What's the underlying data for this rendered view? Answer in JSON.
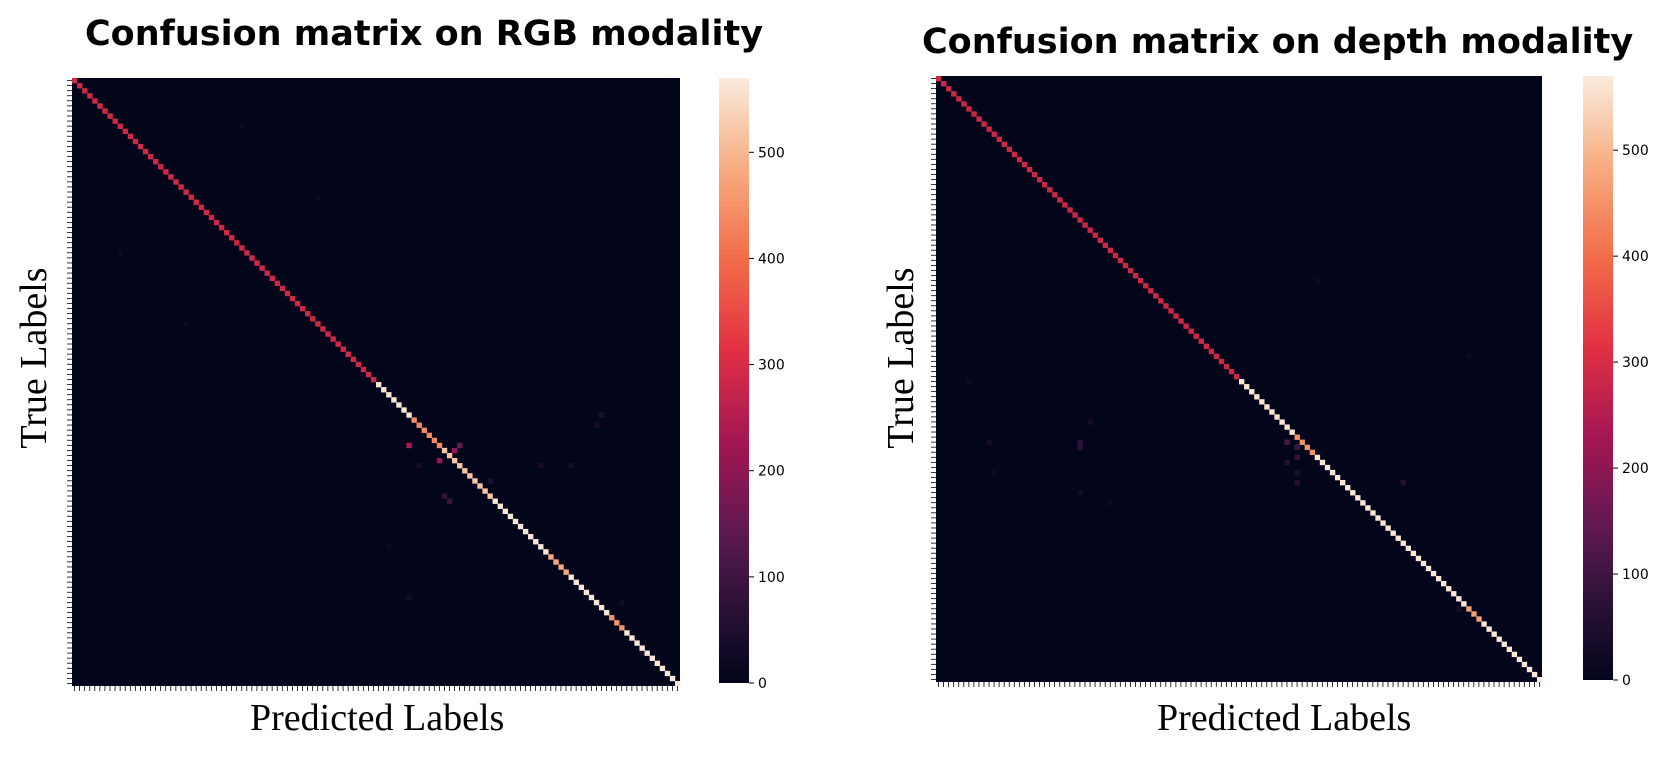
{
  "chart_data": [
    {
      "type": "heatmap",
      "title": "Confusion matrix on RGB modality",
      "xlabel": "Predicted Labels",
      "ylabel": "True Labels",
      "n_classes": 120,
      "colorbar": {
        "min": 0,
        "max": 570,
        "ticks": [
          0,
          100,
          200,
          300,
          400,
          500
        ]
      },
      "diagonal": [
        {
          "from_class": 0,
          "to_class": 59,
          "value": 290
        },
        {
          "from_class": 60,
          "to_class": 66,
          "value": 560
        },
        {
          "from_class": 67,
          "to_class": 72,
          "value": 440
        },
        {
          "from_class": 73,
          "to_class": 82,
          "value": 520
        },
        {
          "from_class": 83,
          "to_class": 93,
          "value": 565
        },
        {
          "from_class": 94,
          "to_class": 97,
          "value": 480
        },
        {
          "from_class": 98,
          "to_class": 105,
          "value": 565
        },
        {
          "from_class": 106,
          "to_class": 108,
          "value": 450
        },
        {
          "from_class": 109,
          "to_class": 119,
          "value": 565
        }
      ],
      "off_diagonal": [
        {
          "row": 72,
          "col": 66,
          "value": 240
        },
        {
          "row": 73,
          "col": 75,
          "value": 200
        },
        {
          "row": 75,
          "col": 72,
          "value": 220
        },
        {
          "row": 72,
          "col": 76,
          "value": 150
        },
        {
          "row": 83,
          "col": 74,
          "value": 90
        },
        {
          "row": 82,
          "col": 73,
          "value": 80
        },
        {
          "row": 79,
          "col": 82,
          "value": 60
        },
        {
          "row": 66,
          "col": 104,
          "value": 50
        },
        {
          "row": 68,
          "col": 103,
          "value": 40
        },
        {
          "row": 76,
          "col": 92,
          "value": 40
        },
        {
          "row": 76,
          "col": 98,
          "value": 40
        },
        {
          "row": 76,
          "col": 68,
          "value": 40
        },
        {
          "row": 102,
          "col": 66,
          "value": 35
        },
        {
          "row": 34,
          "col": 9,
          "value": 25
        },
        {
          "row": 9,
          "col": 33,
          "value": 20
        },
        {
          "row": 23,
          "col": 48,
          "value": 20
        },
        {
          "row": 48,
          "col": 22,
          "value": 20
        },
        {
          "row": 92,
          "col": 62,
          "value": 20
        },
        {
          "row": 103,
          "col": 108,
          "value": 30
        },
        {
          "row": 113,
          "col": 112,
          "value": 40
        }
      ]
    },
    {
      "type": "heatmap",
      "title": "Confusion matrix on depth modality",
      "xlabel": "Predicted Labels",
      "ylabel": "True Labels",
      "n_classes": 120,
      "colorbar": {
        "min": 0,
        "max": 570,
        "ticks": [
          0,
          100,
          200,
          300,
          400,
          500
        ]
      },
      "diagonal": [
        {
          "from_class": 0,
          "to_class": 59,
          "value": 285
        },
        {
          "from_class": 60,
          "to_class": 70,
          "value": 560
        },
        {
          "from_class": 71,
          "to_class": 74,
          "value": 450
        },
        {
          "from_class": 75,
          "to_class": 104,
          "value": 565
        },
        {
          "from_class": 105,
          "to_class": 107,
          "value": 470
        },
        {
          "from_class": 108,
          "to_class": 119,
          "value": 565
        }
      ],
      "off_diagonal": [
        {
          "row": 72,
          "col": 69,
          "value": 120
        },
        {
          "row": 73,
          "col": 71,
          "value": 100
        },
        {
          "row": 75,
          "col": 71,
          "value": 90
        },
        {
          "row": 80,
          "col": 71,
          "value": 70
        },
        {
          "row": 80,
          "col": 92,
          "value": 60
        },
        {
          "row": 72,
          "col": 28,
          "value": 70
        },
        {
          "row": 73,
          "col": 28,
          "value": 70
        },
        {
          "row": 68,
          "col": 30,
          "value": 40
        },
        {
          "row": 72,
          "col": 10,
          "value": 35
        },
        {
          "row": 82,
          "col": 28,
          "value": 30
        },
        {
          "row": 84,
          "col": 34,
          "value": 25
        },
        {
          "row": 78,
          "col": 11,
          "value": 20
        },
        {
          "row": 76,
          "col": 69,
          "value": 60
        },
        {
          "row": 78,
          "col": 71,
          "value": 50
        },
        {
          "row": 55,
          "col": 105,
          "value": 20
        },
        {
          "row": 60,
          "col": 6,
          "value": 20
        },
        {
          "row": 40,
          "col": 75,
          "value": 20
        },
        {
          "row": 105,
          "col": 103,
          "value": 40
        }
      ]
    }
  ]
}
